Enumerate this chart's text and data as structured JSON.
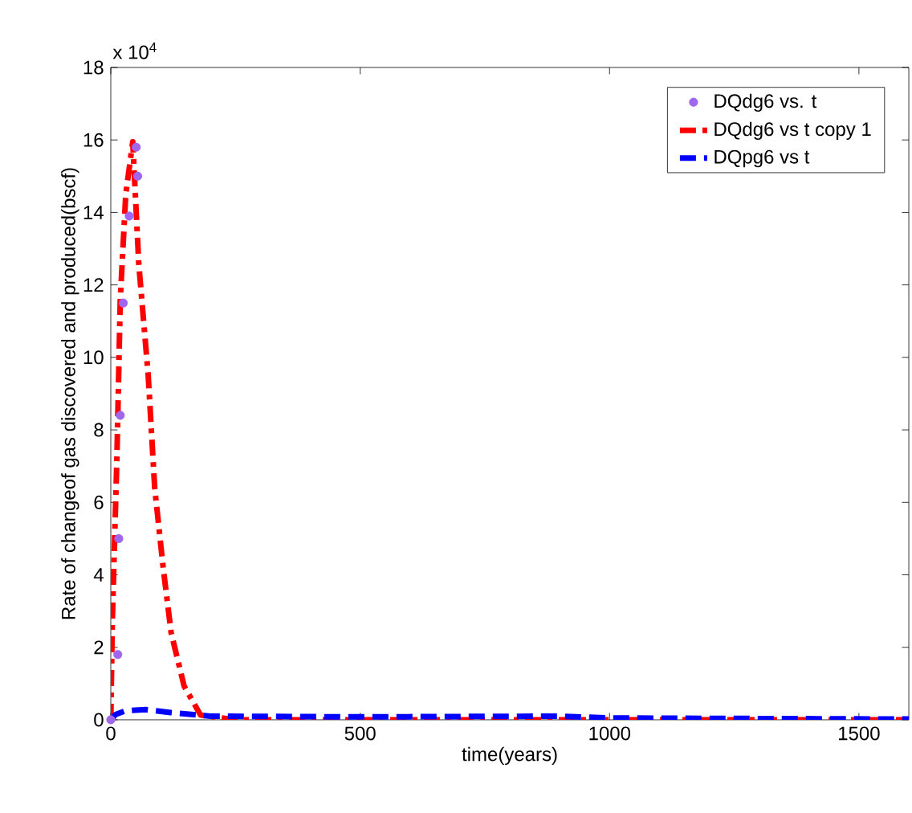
{
  "chart_data": {
    "type": "line",
    "xlabel": "time(years)",
    "ylabel": "Rate of changeof gas discovered and produced(bscf)",
    "annotations": [
      "x 10$^{4}$"
    ],
    "xlim": [
      0,
      1600
    ],
    "xticks": [
      0,
      500,
      1000,
      1500
    ],
    "ylim": [
      0,
      18
    ],
    "yticks": [
      0,
      2,
      4,
      6,
      8,
      10,
      12,
      14,
      16,
      18
    ],
    "grid": false,
    "legend": "top right",
    "series": [
      {
        "name": "DQdg6 vs. t",
        "type": "scatter",
        "marker": "circle",
        "color": "#a066ee",
        "x": [
          0,
          14,
          16,
          19,
          25,
          37,
          51,
          54
        ],
        "values": [
          0,
          1.8,
          5.0,
          8.4,
          11.5,
          13.9,
          15.8,
          15.0
        ]
      },
      {
        "name": "DQdg6 vs t copy 1",
        "line_style": "dashdot",
        "color": "#ff0000",
        "x": [
          0,
          3,
          12,
          19,
          30,
          44,
          56,
          75,
          88,
          105,
          121,
          147,
          180,
          250,
          1600
        ],
        "values": [
          0,
          2.7,
          7.1,
          11.6,
          14.5,
          15.95,
          12.6,
          9.5,
          6.4,
          4.2,
          2.4,
          0.93,
          0.13,
          0,
          0
        ]
      },
      {
        "name": "DQpg6 vs t",
        "line_style": "dashed",
        "color": "#0000ff",
        "x": [
          0,
          10,
          30,
          70,
          120,
          200,
          500,
          900,
          1000,
          1600
        ],
        "values": [
          0,
          0.15,
          0.25,
          0.28,
          0.2,
          0.1,
          0.08,
          0.1,
          0.05,
          0.02
        ]
      }
    ]
  }
}
